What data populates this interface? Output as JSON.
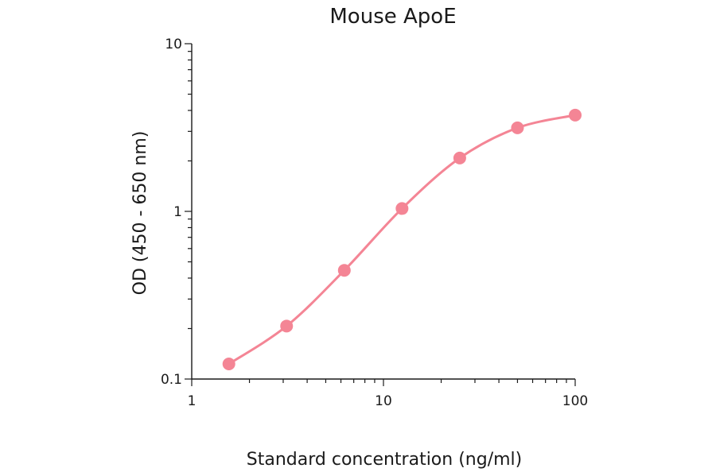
{
  "chart_data": {
    "type": "scatter",
    "title": "Mouse ApoE",
    "xlabel": "Standard concentration (ng/ml)",
    "ylabel": "OD (450 - 650 nm)",
    "xscale": "log",
    "yscale": "log",
    "xlim": [
      1,
      100
    ],
    "ylim": [
      0.1,
      10
    ],
    "x_tick_labels": [
      "1",
      "10",
      "100"
    ],
    "y_tick_labels": [
      "0.1",
      "1",
      "10"
    ],
    "grid": false,
    "series": [
      {
        "x": [
          1.5625,
          3.125,
          6.25,
          12.5,
          25,
          50,
          100
        ],
        "y": [
          0.123,
          0.207,
          0.445,
          1.04,
          2.08,
          3.15,
          3.75
        ],
        "color": "#f48595",
        "marker": "circle",
        "fit_line": true
      }
    ]
  }
}
